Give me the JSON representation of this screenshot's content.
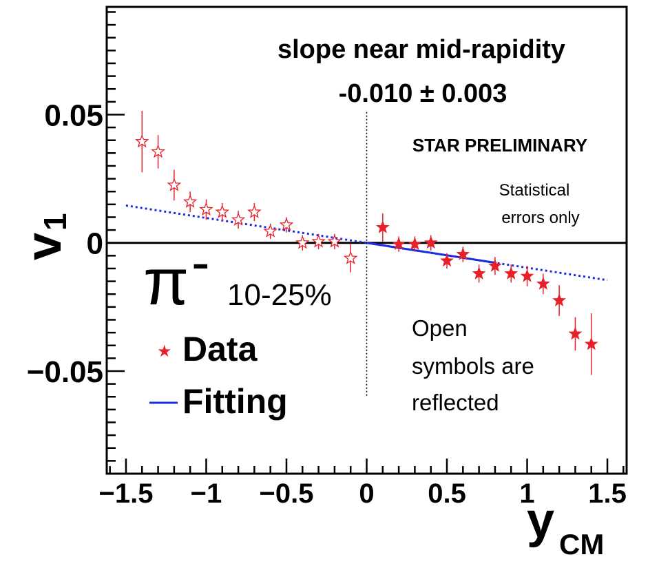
{
  "chart_data": {
    "type": "scatter",
    "title": "",
    "xlabel_main": "y",
    "xlabel_sub": "CM",
    "ylabel_main": "v",
    "ylabel_sub": "1",
    "xlim": [
      -1.62,
      1.62
    ],
    "ylim": [
      -0.09,
      0.092
    ],
    "x_ticks": [
      {
        "v": -1.5,
        "label": "−1.5"
      },
      {
        "v": -1.0,
        "label": "−1"
      },
      {
        "v": -0.5,
        "label": "−0.5"
      },
      {
        "v": 0.0,
        "label": "0"
      },
      {
        "v": 0.5,
        "label": "0.5"
      },
      {
        "v": 1.0,
        "label": "1"
      },
      {
        "v": 1.5,
        "label": "1.5"
      }
    ],
    "y_ticks": [
      {
        "v": 0.05,
        "label": "0.05"
      },
      {
        "v": 0.0,
        "label": "0"
      },
      {
        "v": -0.05,
        "label": "−0.05"
      }
    ],
    "series": [
      {
        "name": "Data",
        "marker": "filled-star",
        "color": "#e8202a",
        "points": [
          {
            "x": 0.1,
            "y": 0.006,
            "err": 0.0055
          },
          {
            "x": 0.2,
            "y": -0.0005,
            "err": 0.003
          },
          {
            "x": 0.3,
            "y": -0.0005,
            "err": 0.003
          },
          {
            "x": 0.4,
            "y": 0.0,
            "err": 0.003
          },
          {
            "x": 0.5,
            "y": -0.007,
            "err": 0.003
          },
          {
            "x": 0.6,
            "y": -0.0045,
            "err": 0.003
          },
          {
            "x": 0.7,
            "y": -0.012,
            "err": 0.0035
          },
          {
            "x": 0.8,
            "y": -0.009,
            "err": 0.0035
          },
          {
            "x": 0.9,
            "y": -0.012,
            "err": 0.0035
          },
          {
            "x": 1.0,
            "y": -0.013,
            "err": 0.004
          },
          {
            "x": 1.1,
            "y": -0.016,
            "err": 0.004
          },
          {
            "x": 1.2,
            "y": -0.0225,
            "err": 0.006
          },
          {
            "x": 1.3,
            "y": -0.0355,
            "err": 0.0065
          },
          {
            "x": 1.4,
            "y": -0.0395,
            "err": 0.012
          }
        ]
      },
      {
        "name": "",
        "marker": "open-star",
        "color": "#e8202a",
        "points": [
          {
            "x": -1.4,
            "y": 0.0395,
            "err": 0.012
          },
          {
            "x": -1.3,
            "y": 0.0355,
            "err": 0.0065
          },
          {
            "x": -1.2,
            "y": 0.0225,
            "err": 0.006
          },
          {
            "x": -1.1,
            "y": 0.016,
            "err": 0.004
          },
          {
            "x": -1.0,
            "y": 0.013,
            "err": 0.004
          },
          {
            "x": -0.9,
            "y": 0.012,
            "err": 0.0035
          },
          {
            "x": -0.8,
            "y": 0.009,
            "err": 0.0035
          },
          {
            "x": -0.7,
            "y": 0.012,
            "err": 0.0035
          },
          {
            "x": -0.6,
            "y": 0.0045,
            "err": 0.003
          },
          {
            "x": -0.5,
            "y": 0.007,
            "err": 0.003
          },
          {
            "x": -0.4,
            "y": 0.0,
            "err": 0.003
          },
          {
            "x": -0.3,
            "y": 0.0005,
            "err": 0.003
          },
          {
            "x": -0.2,
            "y": 0.0005,
            "err": 0.003
          },
          {
            "x": -0.1,
            "y": -0.006,
            "err": 0.0055
          }
        ]
      }
    ],
    "fit": {
      "name": "Fitting",
      "color": "#1a2de0",
      "slope": -0.0097,
      "solid_x": [
        0.0,
        0.8
      ],
      "dotted_x": [
        -1.5,
        1.5
      ]
    },
    "annotations": {
      "slope_title": "slope near mid-rapidity",
      "slope_value": "-0.010 ± 0.003",
      "preliminary": "STAR PRELIMINARY",
      "stat_line1": "Statistical",
      "stat_line2": "errors only",
      "particle": "π",
      "particle_charge": "-",
      "centrality": "10-25%",
      "open_line1": "Open",
      "open_line2": "symbols are",
      "open_line3": "reflected"
    },
    "legend": {
      "placement": "bottom-left",
      "items": [
        {
          "label": "Data",
          "symbol": "★",
          "color": "#e8202a"
        },
        {
          "label": "Fitting",
          "symbol": "line",
          "color": "#1a2de0"
        }
      ]
    }
  }
}
